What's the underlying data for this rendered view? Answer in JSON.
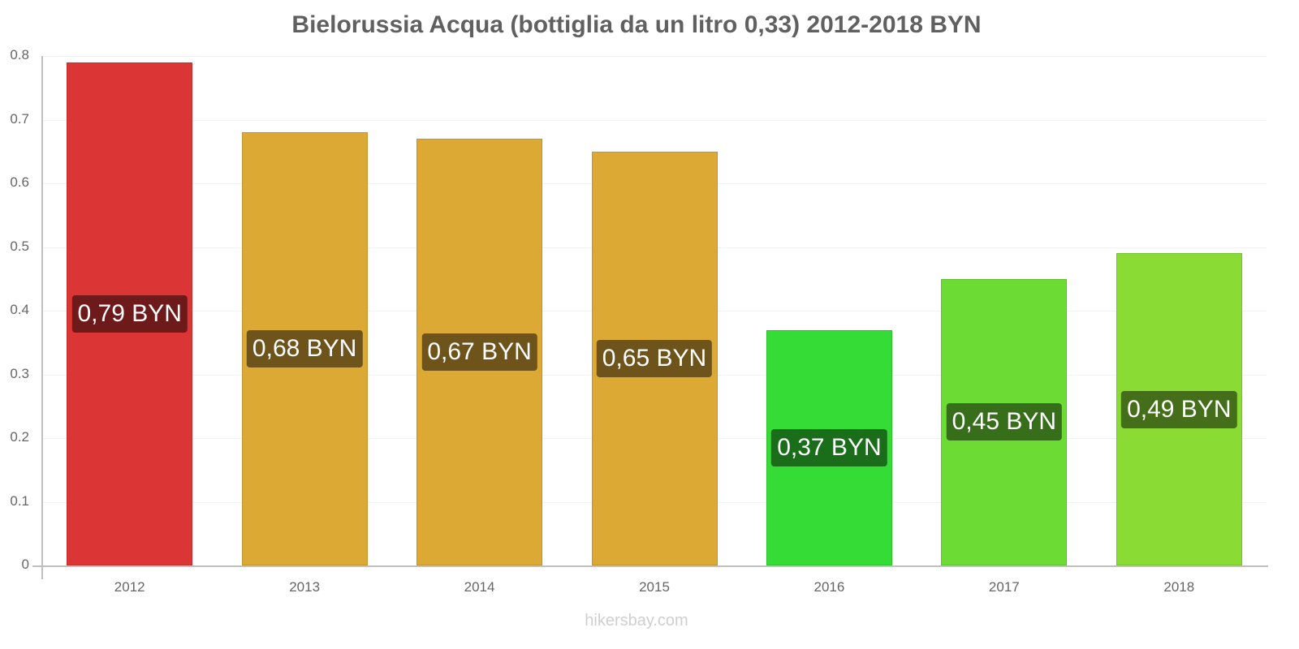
{
  "chart_data": {
    "type": "bar",
    "title": "Bielorussia Acqua (bottiglia da un litro 0,33) 2012-2018 BYN",
    "xlabel": "",
    "ylabel": "",
    "ylim": [
      0,
      0.8
    ],
    "yticks": [
      "0",
      "0.1",
      "0.2",
      "0.3",
      "0.4",
      "0.5",
      "0.6",
      "0.7",
      "0.8"
    ],
    "categories": [
      "2012",
      "2013",
      "2014",
      "2015",
      "2016",
      "2017",
      "2018"
    ],
    "values": [
      0.79,
      0.68,
      0.67,
      0.65,
      0.37,
      0.45,
      0.49
    ],
    "data_labels": [
      "0,79 BYN",
      "0,68 BYN",
      "0,67 BYN",
      "0,65 BYN",
      "0,37 BYN",
      "0,45 BYN",
      "0,49 BYN"
    ],
    "bar_colors": [
      "#dc3535",
      "#dca934",
      "#dca934",
      "#dca934",
      "#35dc35",
      "#6cdc35",
      "#8adc35"
    ],
    "label_colors": [
      "#6e1a1a",
      "#6e541a",
      "#6e541a",
      "#6e541a",
      "#1a6e1a",
      "#366e1a",
      "#456e1a"
    ],
    "grid": true,
    "legend": "none"
  },
  "footer": {
    "source": "hikersbay.com"
  }
}
